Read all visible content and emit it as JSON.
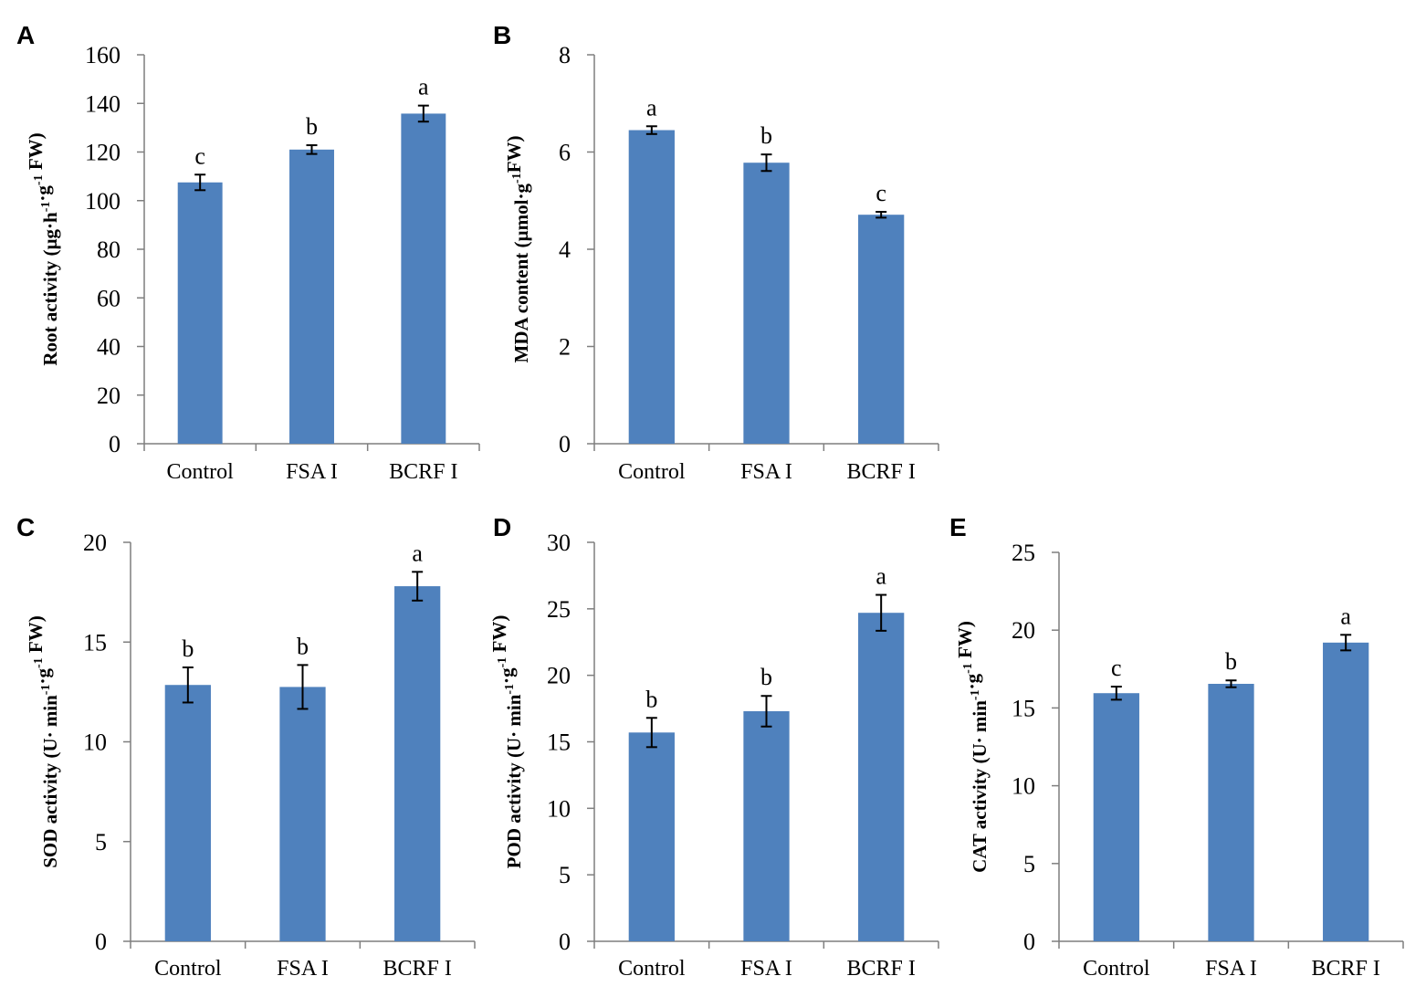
{
  "colors": {
    "bar": "#4f81bd",
    "axis": "#7f7f7f",
    "text": "#000000"
  },
  "chart_data": [
    {
      "type": "bar",
      "panel": "A",
      "categories": [
        "Control",
        "FSA I",
        "BCRF I"
      ],
      "values": [
        107.5,
        121,
        135.8
      ],
      "errors": [
        3.2,
        1.8,
        3.3
      ],
      "significance": [
        "c",
        "b",
        "a"
      ],
      "ylabel": {
        "pre": "Root activity (µg·h",
        "sup1": "-1",
        "mid": "·g",
        "sup2": "-1",
        "post": " FW)"
      },
      "ylim": [
        0,
        160
      ],
      "yticks": [
        0,
        20,
        40,
        60,
        80,
        100,
        120,
        140,
        160
      ],
      "ytick_labels": [
        "0",
        "20",
        "40",
        "60",
        "80",
        "100",
        "120",
        "140",
        "160"
      ]
    },
    {
      "type": "bar",
      "panel": "B",
      "categories": [
        "Control",
        "FSA I",
        "BCRF I"
      ],
      "values": [
        6.45,
        5.78,
        4.71
      ],
      "errors": [
        0.08,
        0.17,
        0.06
      ],
      "significance": [
        "a",
        "b",
        "c"
      ],
      "ylabel": {
        "pre": "MDA content (µmol·g",
        "sup1": "-1",
        "mid": "FW)",
        "sup2": "",
        "post": ""
      },
      "ylim": [
        0,
        8
      ],
      "yticks": [
        0,
        2,
        4,
        6,
        8
      ],
      "ytick_labels": [
        "0",
        "2",
        "4",
        "6",
        "8"
      ]
    },
    {
      "type": "bar",
      "panel": "C",
      "categories": [
        "Control",
        "FSA I",
        "BCRF I"
      ],
      "values": [
        12.85,
        12.75,
        17.8
      ],
      "errors": [
        0.88,
        1.1,
        0.72
      ],
      "significance": [
        "b",
        "b",
        "a"
      ],
      "ylabel": {
        "pre": "SOD activity (U· min",
        "sup1": "-1",
        "mid": "·g",
        "sup2": "-1",
        "post": " FW)"
      },
      "ylim": [
        0,
        20
      ],
      "yticks": [
        0,
        5,
        10,
        15,
        20
      ],
      "ytick_labels": [
        "0",
        "5",
        "10",
        "15",
        "20"
      ]
    },
    {
      "type": "bar",
      "panel": "D",
      "categories": [
        "Control",
        "FSA I",
        "BCRF I"
      ],
      "values": [
        15.7,
        17.3,
        24.7
      ],
      "errors": [
        1.1,
        1.15,
        1.35
      ],
      "significance": [
        "b",
        "b",
        "a"
      ],
      "ylabel": {
        "pre": "POD activity (U· min",
        "sup1": "-1",
        "mid": "·g",
        "sup2": "-1",
        "post": " FW)"
      },
      "ylim": [
        0,
        30
      ],
      "yticks": [
        0,
        5,
        10,
        15,
        20,
        25,
        30
      ],
      "ytick_labels": [
        "0",
        "5",
        "10",
        "15",
        "20",
        "25",
        "30"
      ]
    },
    {
      "type": "bar",
      "panel": "E",
      "categories": [
        "Control",
        "FSA I",
        "BCRF I"
      ],
      "values": [
        15.95,
        16.55,
        19.2
      ],
      "errors": [
        0.42,
        0.22,
        0.5
      ],
      "significance": [
        "c",
        "b",
        "a"
      ],
      "ylabel": {
        "pre": "CAT activity (U· min",
        "sup1": "-1",
        "mid": "·g",
        "sup2": "-1",
        "post": " FW)"
      },
      "ylim": [
        0,
        25
      ],
      "yticks": [
        0,
        5,
        10,
        15,
        20,
        25
      ],
      "ytick_labels": [
        "0",
        "5",
        "10",
        "15",
        "20",
        "25"
      ]
    }
  ]
}
